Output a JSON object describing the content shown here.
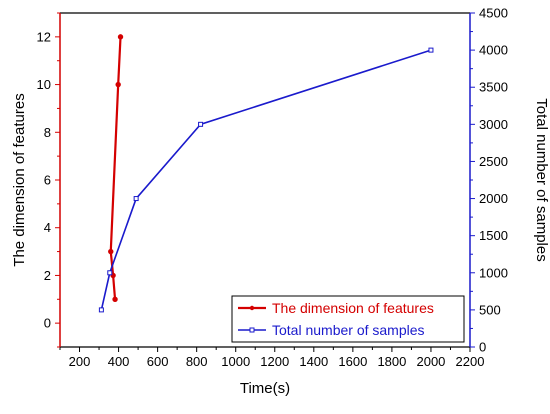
{
  "chart_data": {
    "type": "line",
    "title": "",
    "xlabel": "Time(s)",
    "ylabel_left": "The dimension of features",
    "ylabel_right": "Total number of samples",
    "xlim": [
      100,
      2200
    ],
    "ylim_left": [
      -1,
      13
    ],
    "ylim_right": [
      0,
      4500
    ],
    "x_ticks": [
      200,
      400,
      600,
      800,
      1000,
      1200,
      1400,
      1600,
      1800,
      2000,
      2200
    ],
    "y_left_ticks": [
      0,
      2,
      4,
      6,
      8,
      10,
      12
    ],
    "y_right_ticks": [
      0,
      500,
      1000,
      1500,
      2000,
      2500,
      3000,
      3500,
      4000,
      4500
    ],
    "grid": false,
    "legend_position": "bottom-right",
    "series": [
      {
        "name": "The dimension of features",
        "axis": "left",
        "color": "#d40000",
        "marker": "filled-circle",
        "x": [
          382,
          372,
          360,
          398,
          410
        ],
        "y": [
          1,
          2,
          3,
          10,
          12
        ]
      },
      {
        "name": "Total number of samples",
        "axis": "right",
        "color": "#1a1acc",
        "marker": "open-square",
        "x": [
          312,
          355,
          490,
          820,
          2000
        ],
        "y": [
          500,
          1000,
          2000,
          3000,
          4000
        ]
      }
    ]
  },
  "colors": {
    "left_axis": "#d40000",
    "right_axis": "#1a1acc",
    "text": "#000000"
  }
}
